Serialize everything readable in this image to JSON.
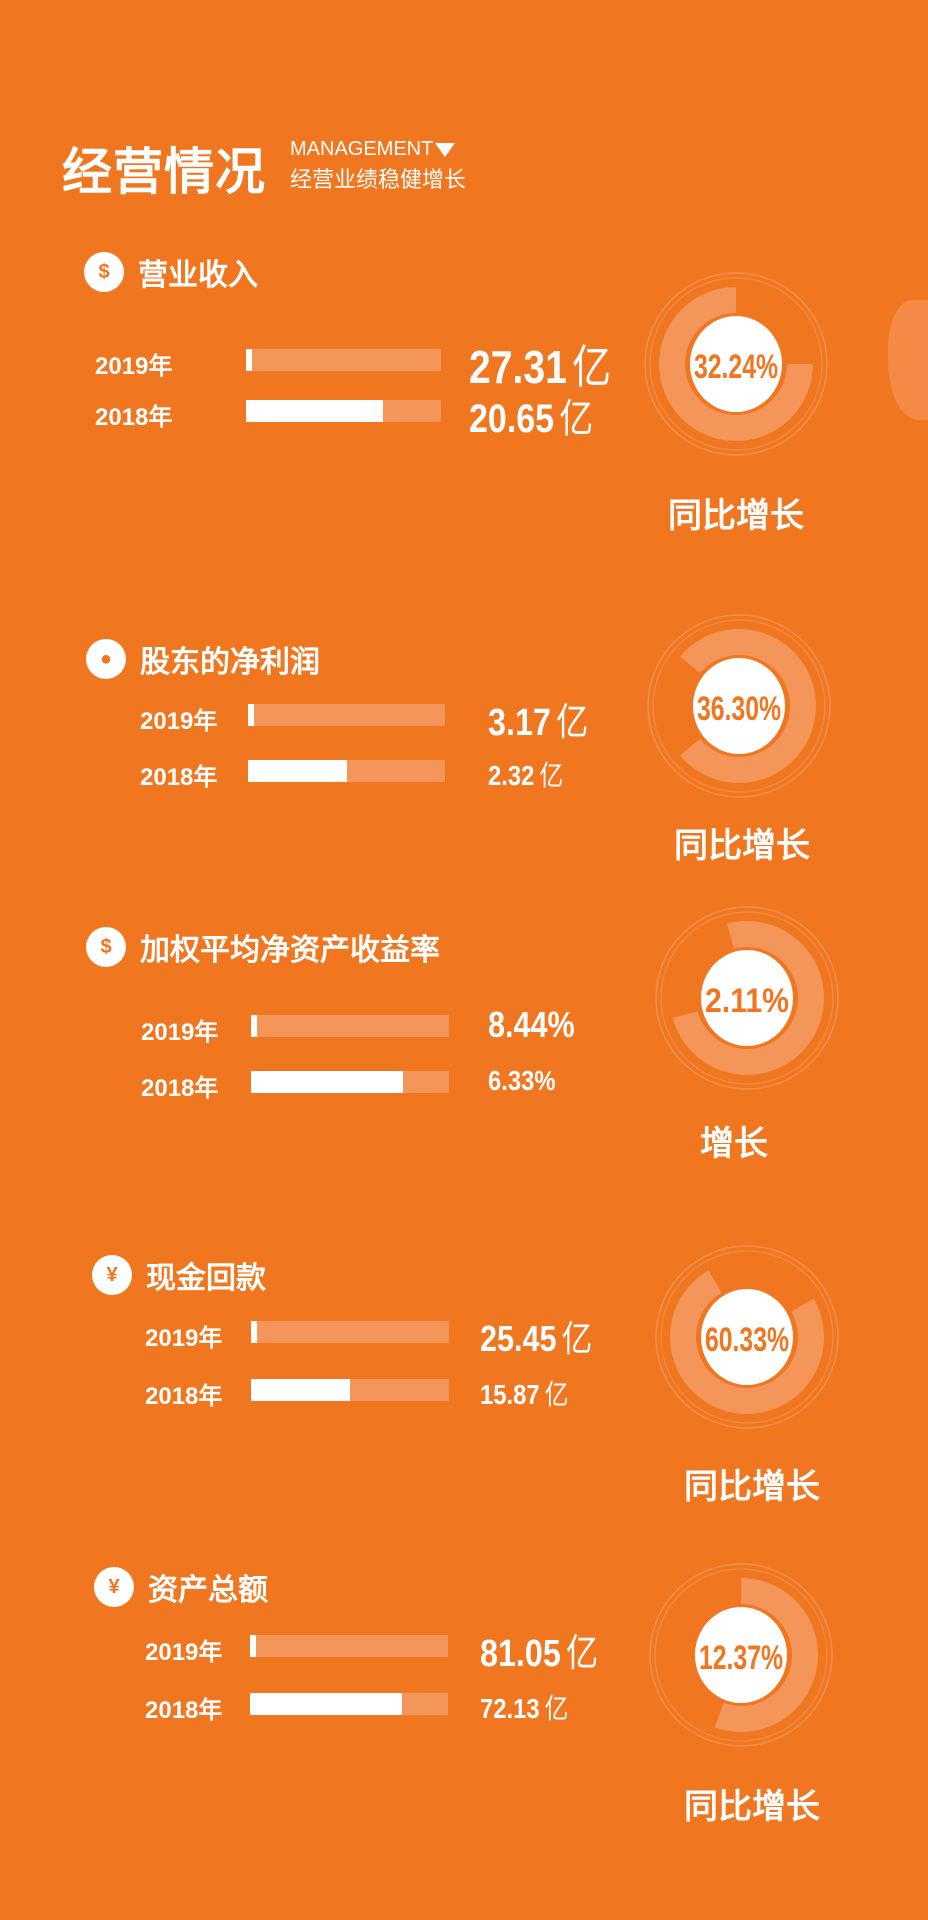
{
  "header": {
    "title": "经营情况",
    "english": "MANAGEMENT",
    "subtitle": "经营业绩稳健增长"
  },
  "colors": {
    "background": "#f07620",
    "bar_track": "#f4955a",
    "ring_light": "#f4955a",
    "white": "#ffffff"
  },
  "sections": [
    {
      "title": "营业收入",
      "icon": "coins-icon",
      "rows": [
        {
          "year": "2019年",
          "value": "27.31",
          "unit": "亿",
          "fill": 0.03
        },
        {
          "year": "2018年",
          "value": "20.65",
          "unit": "亿",
          "fill": 0.7
        }
      ],
      "growth": "32.24%",
      "growth_label": "同比增长"
    },
    {
      "title": "股东的净利润",
      "icon": "people-icon",
      "rows": [
        {
          "year": "2019年",
          "value": "3.17",
          "unit": "亿",
          "fill": 0.03
        },
        {
          "year": "2018年",
          "value": "2.32",
          "unit": "亿",
          "fill": 0.5
        }
      ],
      "growth": "36.30%",
      "growth_label": "同比增长"
    },
    {
      "title": "加权平均净资产收益率",
      "icon": "money-bag-icon",
      "rows": [
        {
          "year": "2019年",
          "value": "8.44%",
          "unit": "",
          "fill": 0.03
        },
        {
          "year": "2018年",
          "value": "6.33%",
          "unit": "",
          "fill": 0.77
        }
      ],
      "growth": "2.11%",
      "growth_label": "增长"
    },
    {
      "title": "现金回款",
      "icon": "cash-icon",
      "rows": [
        {
          "year": "2019年",
          "value": "25.45",
          "unit": "亿",
          "fill": 0.03
        },
        {
          "year": "2018年",
          "value": "15.87",
          "unit": "亿",
          "fill": 0.5
        }
      ],
      "growth": "60.33%",
      "growth_label": "同比增长"
    },
    {
      "title": "资产总额",
      "icon": "coin-stack-icon",
      "rows": [
        {
          "year": "2019年",
          "value": "81.05",
          "unit": "亿",
          "fill": 0.03
        },
        {
          "year": "2018年",
          "value": "72.13",
          "unit": "亿",
          "fill": 0.77
        }
      ],
      "growth": "12.37%",
      "growth_label": "同比增长"
    }
  ]
}
